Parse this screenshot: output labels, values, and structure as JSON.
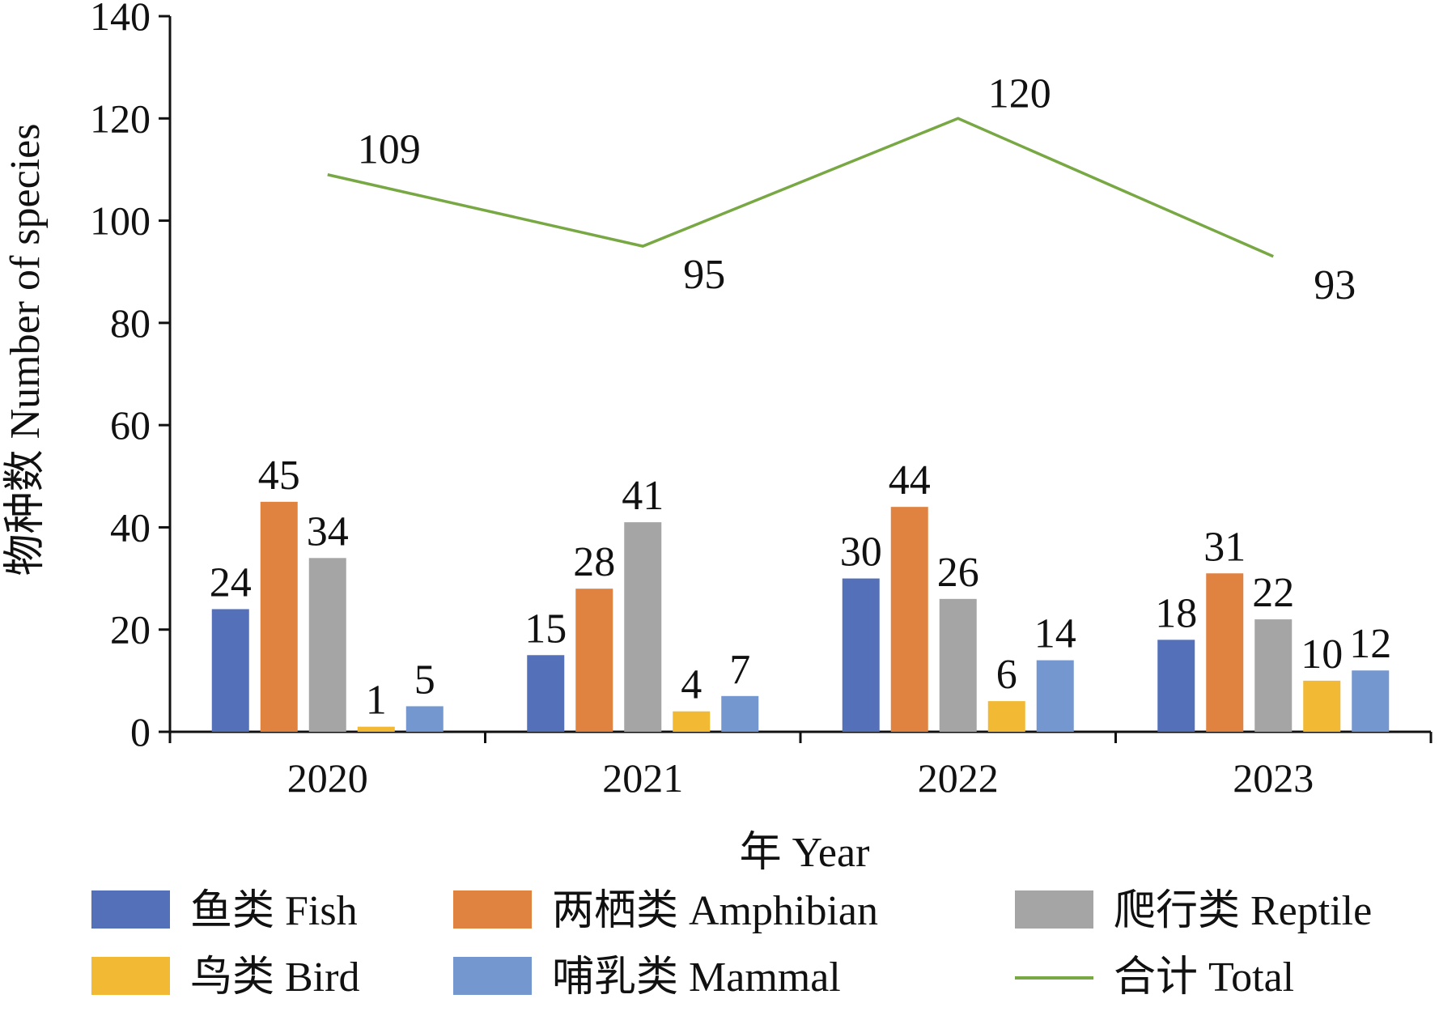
{
  "chart_data": {
    "type": "bar",
    "title": "",
    "xlabel": "年 Year",
    "ylabel": "物种数 Number of species",
    "ylim": [
      0,
      140
    ],
    "yticks": [
      "0",
      "20",
      "40",
      "60",
      "80",
      "100",
      "120",
      "140"
    ],
    "categories": [
      "2020",
      "2021",
      "2022",
      "2023"
    ],
    "series": [
      {
        "name": "鱼类 Fish",
        "type": "bar",
        "color": "#5470b8",
        "values": [
          24,
          15,
          30,
          18
        ]
      },
      {
        "name": "两栖类 Amphibian",
        "type": "bar",
        "color": "#e08240",
        "values": [
          45,
          28,
          44,
          31
        ]
      },
      {
        "name": "爬行类 Reptile",
        "type": "bar",
        "color": "#a5a5a5",
        "values": [
          34,
          41,
          26,
          22
        ]
      },
      {
        "name": "鸟类 Bird",
        "type": "bar",
        "color": "#f1b934",
        "values": [
          1,
          4,
          6,
          10
        ]
      },
      {
        "name": "哺乳类 Mammal",
        "type": "bar",
        "color": "#7597cf",
        "values": [
          5,
          7,
          14,
          12
        ]
      },
      {
        "name": "合计 Total",
        "type": "line",
        "color": "#78a844",
        "values": [
          109,
          95,
          120,
          93
        ]
      }
    ],
    "grid": false,
    "legend_position": "bottom"
  }
}
